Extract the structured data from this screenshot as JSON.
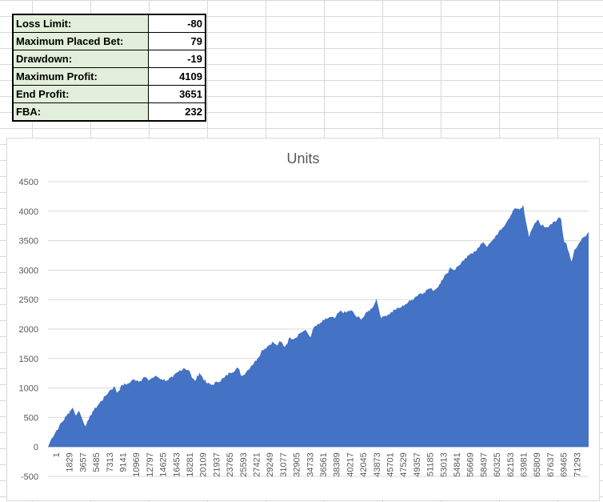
{
  "stats": [
    {
      "label": "Loss Limit:",
      "value": "-80"
    },
    {
      "label": "Maximum Placed Bet:",
      "value": "79"
    },
    {
      "label": "Drawdown:",
      "value": "-19"
    },
    {
      "label": "Maximum Profit:",
      "value": "4109"
    },
    {
      "label": "End Profit:",
      "value": "3651"
    },
    {
      "label": "FBA:",
      "value": "232"
    }
  ],
  "chart_data": {
    "type": "area",
    "title": "Units",
    "xlabel": "",
    "ylabel": "",
    "ylim": [
      -500,
      4500
    ],
    "yticks": [
      -500,
      0,
      500,
      1000,
      1500,
      2000,
      2500,
      3000,
      3500,
      4000,
      4500
    ],
    "xlim": [
      1,
      72800
    ],
    "xticks": [
      "1",
      "1829",
      "3657",
      "5485",
      "7313",
      "9141",
      "10969",
      "12797",
      "14625",
      "16453",
      "18281",
      "20109",
      "21937",
      "23765",
      "25593",
      "27421",
      "29249",
      "31077",
      "32905",
      "34733",
      "36561",
      "38389",
      "40217",
      "42045",
      "43873",
      "45701",
      "47529",
      "49357",
      "51185",
      "53013",
      "54841",
      "56669",
      "58497",
      "60325",
      "62153",
      "63981",
      "65809",
      "67637",
      "69465",
      "71293"
    ],
    "grid": true,
    "legend": "none",
    "color": "#4472c4",
    "series": [
      {
        "x": [
          1,
          500,
          1500,
          2500,
          3300,
          3700,
          4200,
          4600,
          5100,
          5500,
          6000,
          6800,
          7700,
          8400,
          9000,
          9300,
          10000,
          10900,
          11600,
          12400,
          13000,
          13500,
          14000,
          14600,
          15300,
          16000,
          16800,
          17500,
          18300,
          19000,
          19400,
          19800,
          20400,
          21300,
          22000,
          22800,
          23700,
          24500,
          25600,
          26100,
          26800,
          27400,
          28200,
          28900,
          29500,
          30200,
          30800,
          31300,
          31900,
          32600,
          33200,
          33900,
          34600,
          35400,
          35800,
          36500,
          37200,
          37900,
          38600,
          39300,
          40100,
          40800,
          41600,
          42300,
          43000,
          43600,
          44000,
          44200,
          44900,
          45400,
          46100,
          46700,
          47400,
          48100,
          48800,
          49400,
          50000,
          50600,
          51300,
          52000,
          52400,
          53000,
          53700,
          54200,
          54700,
          55300,
          56000,
          56700,
          57400,
          58000,
          58600,
          59200,
          59800,
          60400,
          61000,
          61700,
          62300,
          62900,
          63500,
          64000,
          64400,
          64800,
          65200,
          65900,
          66500,
          67100,
          67700,
          68400,
          68800,
          69100,
          69500,
          69800,
          70200,
          70500,
          70900,
          71300,
          71900,
          72400,
          72800
        ],
        "values": [
          0,
          150,
          350,
          530,
          670,
          540,
          610,
          480,
          350,
          470,
          600,
          720,
          860,
          970,
          1020,
          920,
          1050,
          1080,
          1150,
          1120,
          1190,
          1130,
          1170,
          1200,
          1150,
          1130,
          1180,
          1270,
          1340,
          1300,
          1170,
          1120,
          1260,
          1090,
          1050,
          1100,
          1170,
          1260,
          1340,
          1200,
          1290,
          1380,
          1500,
          1650,
          1700,
          1780,
          1720,
          1790,
          1700,
          1860,
          1840,
          1930,
          1980,
          1870,
          2030,
          2080,
          2150,
          2200,
          2180,
          2300,
          2280,
          2320,
          2200,
          2180,
          2290,
          2350,
          2440,
          2520,
          2180,
          2230,
          2270,
          2330,
          2360,
          2420,
          2480,
          2540,
          2600,
          2620,
          2690,
          2660,
          2700,
          2830,
          2940,
          3050,
          3000,
          3080,
          3160,
          3250,
          3320,
          3380,
          3480,
          3400,
          3490,
          3600,
          3680,
          3800,
          3930,
          4050,
          4030,
          4109,
          3800,
          3560,
          3700,
          3850,
          3760,
          3730,
          3780,
          3820,
          3900,
          3870,
          3480,
          3460,
          3280,
          3140,
          3350,
          3410,
          3540,
          3570,
          3651
        ]
      }
    ]
  }
}
